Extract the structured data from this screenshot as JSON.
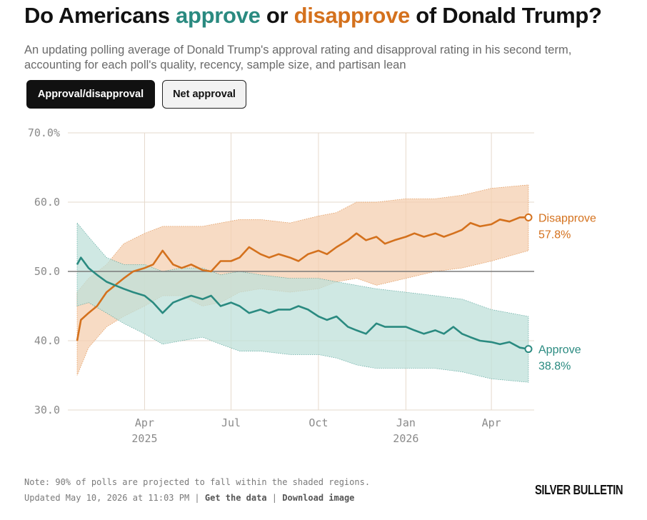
{
  "header": {
    "title_part1": "Do Americans ",
    "title_approve": "approve",
    "title_part2": " or ",
    "title_disapprove": "disapprove",
    "title_part3": " of Donald Trump?",
    "subtitle": "An updating polling average of Donald Trump's approval rating and disapproval rating in his second term, accounting for each poll's quality, recency, sample size, and partisan lean"
  },
  "toggles": {
    "approval_disapproval": "Approval/disapproval",
    "net_approval": "Net approval",
    "active": "approval_disapproval"
  },
  "colors": {
    "approve": "#2a8a80",
    "approve_band": "#bfe0da",
    "disapprove": "#d4711d",
    "disapprove_band": "#f4cfb0",
    "grid": "#e6d9cc",
    "reference_line": "#7a7a7a"
  },
  "chart_data": {
    "type": "line",
    "x_start": "2025-01-20",
    "x_end": "2026-05-10",
    "ylim": [
      30,
      70
    ],
    "y_ticks": [
      "70.0%",
      "60.0",
      "50.0",
      "40.0",
      "30.0"
    ],
    "x_ticks": [
      {
        "date": "2025-04-01",
        "label": "Apr",
        "year": "2025"
      },
      {
        "date": "2025-07-01",
        "label": "Jul",
        "year": ""
      },
      {
        "date": "2025-10-01",
        "label": "Oct",
        "year": ""
      },
      {
        "date": "2026-01-01",
        "label": "Jan",
        "year": "2026"
      },
      {
        "date": "2026-04-01",
        "label": "Apr",
        "year": ""
      }
    ],
    "reference_line": 50,
    "series": [
      {
        "name": "Disapprove",
        "final_label": "57.8%",
        "color": "#d4711d",
        "points": [
          [
            "2025-01-20",
            40.0
          ],
          [
            "2025-01-24",
            43.0
          ],
          [
            "2025-02-01",
            44.0
          ],
          [
            "2025-02-10",
            45.0
          ],
          [
            "2025-02-20",
            47.0
          ],
          [
            "2025-03-01",
            48.0
          ],
          [
            "2025-03-10",
            49.0
          ],
          [
            "2025-03-20",
            50.0
          ],
          [
            "2025-04-01",
            50.5
          ],
          [
            "2025-04-10",
            51.0
          ],
          [
            "2025-04-20",
            53.0
          ],
          [
            "2025-05-01",
            51.0
          ],
          [
            "2025-05-10",
            50.5
          ],
          [
            "2025-05-20",
            51.0
          ],
          [
            "2025-06-01",
            50.2
          ],
          [
            "2025-06-10",
            50.0
          ],
          [
            "2025-06-20",
            51.5
          ],
          [
            "2025-07-01",
            51.5
          ],
          [
            "2025-07-10",
            52.0
          ],
          [
            "2025-07-20",
            53.5
          ],
          [
            "2025-08-01",
            52.5
          ],
          [
            "2025-08-10",
            52.0
          ],
          [
            "2025-08-20",
            52.5
          ],
          [
            "2025-09-01",
            52.0
          ],
          [
            "2025-09-10",
            51.5
          ],
          [
            "2025-09-20",
            52.5
          ],
          [
            "2025-10-01",
            53.0
          ],
          [
            "2025-10-10",
            52.5
          ],
          [
            "2025-10-20",
            53.5
          ],
          [
            "2025-11-01",
            54.5
          ],
          [
            "2025-11-10",
            55.5
          ],
          [
            "2025-11-20",
            54.5
          ],
          [
            "2025-12-01",
            55.0
          ],
          [
            "2025-12-10",
            54.0
          ],
          [
            "2025-12-20",
            54.5
          ],
          [
            "2026-01-01",
            55.0
          ],
          [
            "2026-01-10",
            55.5
          ],
          [
            "2026-01-20",
            55.0
          ],
          [
            "2026-02-01",
            55.5
          ],
          [
            "2026-02-10",
            55.0
          ],
          [
            "2026-02-20",
            55.5
          ],
          [
            "2026-03-01",
            56.0
          ],
          [
            "2026-03-10",
            57.0
          ],
          [
            "2026-03-20",
            56.5
          ],
          [
            "2026-04-01",
            56.8
          ],
          [
            "2026-04-10",
            57.5
          ],
          [
            "2026-04-20",
            57.2
          ],
          [
            "2026-05-01",
            57.8
          ],
          [
            "2026-05-10",
            57.8
          ]
        ],
        "band_upper": [
          [
            "2025-01-20",
            47.0
          ],
          [
            "2025-02-01",
            49.0
          ],
          [
            "2025-02-20",
            51.0
          ],
          [
            "2025-03-10",
            54.0
          ],
          [
            "2025-04-01",
            55.5
          ],
          [
            "2025-04-20",
            56.5
          ],
          [
            "2025-05-10",
            56.5
          ],
          [
            "2025-06-01",
            56.5
          ],
          [
            "2025-06-20",
            57.0
          ],
          [
            "2025-07-10",
            57.5
          ],
          [
            "2025-08-01",
            57.5
          ],
          [
            "2025-09-01",
            57.0
          ],
          [
            "2025-10-01",
            58.0
          ],
          [
            "2025-10-20",
            58.5
          ],
          [
            "2025-11-10",
            60.0
          ],
          [
            "2025-12-01",
            60.0
          ],
          [
            "2026-01-01",
            60.5
          ],
          [
            "2026-02-01",
            60.5
          ],
          [
            "2026-03-01",
            61.0
          ],
          [
            "2026-04-01",
            62.0
          ],
          [
            "2026-05-10",
            62.5
          ]
        ],
        "band_lower": [
          [
            "2025-01-20",
            35.0
          ],
          [
            "2025-02-01",
            39.0
          ],
          [
            "2025-02-20",
            42.0
          ],
          [
            "2025-03-10",
            43.5
          ],
          [
            "2025-04-01",
            45.0
          ],
          [
            "2025-04-20",
            46.5
          ],
          [
            "2025-05-10",
            46.5
          ],
          [
            "2025-06-01",
            45.0
          ],
          [
            "2025-06-20",
            45.5
          ],
          [
            "2025-07-10",
            47.0
          ],
          [
            "2025-08-01",
            47.5
          ],
          [
            "2025-09-01",
            47.0
          ],
          [
            "2025-10-01",
            47.5
          ],
          [
            "2025-10-20",
            48.5
          ],
          [
            "2025-11-10",
            49.0
          ],
          [
            "2025-12-01",
            48.0
          ],
          [
            "2026-01-01",
            49.0
          ],
          [
            "2026-02-01",
            50.0
          ],
          [
            "2026-03-01",
            50.5
          ],
          [
            "2026-04-01",
            51.5
          ],
          [
            "2026-05-10",
            53.0
          ]
        ]
      },
      {
        "name": "Approve",
        "final_label": "38.8%",
        "color": "#2a8a80",
        "points": [
          [
            "2025-01-20",
            51.0
          ],
          [
            "2025-01-24",
            52.0
          ],
          [
            "2025-02-01",
            50.5
          ],
          [
            "2025-02-10",
            49.5
          ],
          [
            "2025-02-20",
            48.5
          ],
          [
            "2025-03-01",
            48.0
          ],
          [
            "2025-03-10",
            47.5
          ],
          [
            "2025-03-20",
            47.0
          ],
          [
            "2025-04-01",
            46.5
          ],
          [
            "2025-04-10",
            45.5
          ],
          [
            "2025-04-20",
            44.0
          ],
          [
            "2025-05-01",
            45.5
          ],
          [
            "2025-05-10",
            46.0
          ],
          [
            "2025-05-20",
            46.5
          ],
          [
            "2025-06-01",
            46.0
          ],
          [
            "2025-06-10",
            46.5
          ],
          [
            "2025-06-20",
            45.0
          ],
          [
            "2025-07-01",
            45.5
          ],
          [
            "2025-07-10",
            45.0
          ],
          [
            "2025-07-20",
            44.0
          ],
          [
            "2025-08-01",
            44.5
          ],
          [
            "2025-08-10",
            44.0
          ],
          [
            "2025-08-20",
            44.5
          ],
          [
            "2025-09-01",
            44.5
          ],
          [
            "2025-09-10",
            45.0
          ],
          [
            "2025-09-20",
            44.5
          ],
          [
            "2025-10-01",
            43.5
          ],
          [
            "2025-10-10",
            43.0
          ],
          [
            "2025-10-20",
            43.5
          ],
          [
            "2025-11-01",
            42.0
          ],
          [
            "2025-11-10",
            41.5
          ],
          [
            "2025-11-20",
            41.0
          ],
          [
            "2025-12-01",
            42.5
          ],
          [
            "2025-12-10",
            42.0
          ],
          [
            "2025-12-20",
            42.0
          ],
          [
            "2026-01-01",
            42.0
          ],
          [
            "2026-01-10",
            41.5
          ],
          [
            "2026-01-20",
            41.0
          ],
          [
            "2026-02-01",
            41.5
          ],
          [
            "2026-02-10",
            41.0
          ],
          [
            "2026-02-20",
            42.0
          ],
          [
            "2026-03-01",
            41.0
          ],
          [
            "2026-03-10",
            40.5
          ],
          [
            "2026-03-20",
            40.0
          ],
          [
            "2026-04-01",
            39.8
          ],
          [
            "2026-04-10",
            39.5
          ],
          [
            "2026-04-20",
            39.8
          ],
          [
            "2026-05-01",
            39.0
          ],
          [
            "2026-05-10",
            38.8
          ]
        ],
        "band_upper": [
          [
            "2025-01-20",
            57.0
          ],
          [
            "2025-02-01",
            55.0
          ],
          [
            "2025-02-20",
            52.0
          ],
          [
            "2025-03-10",
            51.0
          ],
          [
            "2025-04-01",
            51.0
          ],
          [
            "2025-04-20",
            50.0
          ],
          [
            "2025-05-10",
            50.5
          ],
          [
            "2025-06-01",
            50.5
          ],
          [
            "2025-06-20",
            49.5
          ],
          [
            "2025-07-10",
            50.0
          ],
          [
            "2025-08-01",
            49.5
          ],
          [
            "2025-09-01",
            49.0
          ],
          [
            "2025-10-01",
            49.0
          ],
          [
            "2025-10-20",
            48.5
          ],
          [
            "2025-11-10",
            48.0
          ],
          [
            "2025-12-01",
            47.5
          ],
          [
            "2026-01-01",
            47.0
          ],
          [
            "2026-02-01",
            46.5
          ],
          [
            "2026-03-01",
            46.0
          ],
          [
            "2026-04-01",
            44.5
          ],
          [
            "2026-05-10",
            43.5
          ]
        ],
        "band_lower": [
          [
            "2025-01-20",
            45.0
          ],
          [
            "2025-02-01",
            45.5
          ],
          [
            "2025-02-20",
            44.0
          ],
          [
            "2025-03-10",
            42.5
          ],
          [
            "2025-04-01",
            41.0
          ],
          [
            "2025-04-20",
            39.5
          ],
          [
            "2025-05-10",
            40.0
          ],
          [
            "2025-06-01",
            40.5
          ],
          [
            "2025-06-20",
            39.5
          ],
          [
            "2025-07-10",
            38.5
          ],
          [
            "2025-08-01",
            38.5
          ],
          [
            "2025-09-01",
            38.0
          ],
          [
            "2025-10-01",
            38.0
          ],
          [
            "2025-10-20",
            37.5
          ],
          [
            "2025-11-10",
            36.5
          ],
          [
            "2025-12-01",
            36.0
          ],
          [
            "2026-01-01",
            36.0
          ],
          [
            "2026-02-01",
            36.0
          ],
          [
            "2026-03-01",
            35.5
          ],
          [
            "2026-04-01",
            34.5
          ],
          [
            "2026-05-10",
            34.0
          ]
        ]
      }
    ]
  },
  "footer": {
    "note": "Note: 90% of polls are projected to fall within the shaded regions.",
    "updated": "Updated May 10, 2026 at 11:03 PM",
    "separator": " | ",
    "get_data": "Get the data",
    "download_image": "Download image",
    "brand": "SILVER BULLETIN"
  }
}
